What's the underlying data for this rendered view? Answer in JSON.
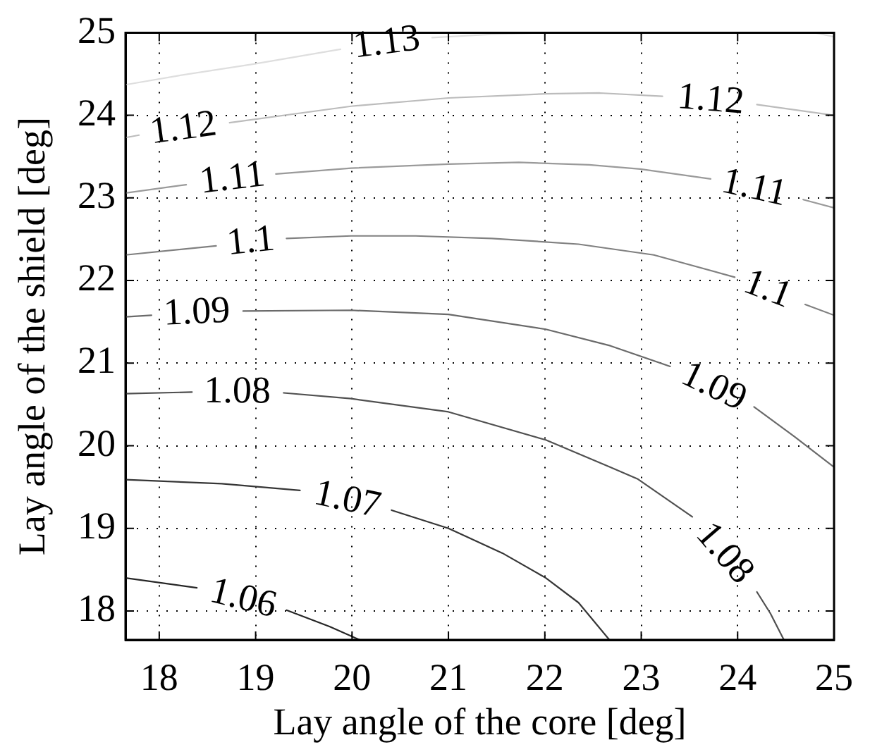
{
  "chart_data": {
    "type": "line",
    "xlabel": "Lay angle of the core [deg]",
    "ylabel": "Lay angle of the shield [deg]",
    "xlim": [
      17.65,
      25
    ],
    "ylim": [
      17.65,
      25
    ],
    "xticks": [
      18,
      19,
      20,
      21,
      22,
      23,
      24,
      25
    ],
    "yticks": [
      18,
      19,
      20,
      21,
      22,
      23,
      24,
      25
    ],
    "grid": true,
    "marker": "none",
    "line_style": "solid",
    "series": [
      {
        "name": "1.06",
        "color": "#262626",
        "x": [
          17.65,
          18.39,
          18.87,
          19.32,
          19.77,
          20.08
        ],
        "values": [
          18.4,
          18.28,
          null,
          18.01,
          17.81,
          17.65
        ]
      },
      {
        "name": "1.07",
        "color": "#363636",
        "x": [
          17.65,
          18.65,
          19.46,
          19.95,
          20.41,
          21.0,
          21.56,
          22.01,
          22.35,
          22.67
        ],
        "values": [
          19.59,
          19.54,
          19.46,
          null,
          19.22,
          19.0,
          18.7,
          18.4,
          18.1,
          17.65
        ]
      },
      {
        "name": "1.08",
        "color": "#505050",
        "x": [
          17.65,
          18.34,
          18.81,
          19.29,
          19.99,
          21.0,
          22.01,
          22.68,
          22.96,
          23.53,
          23.86,
          24.2,
          24.34,
          24.48
        ],
        "values": [
          20.63,
          20.65,
          null,
          20.64,
          20.57,
          20.41,
          20.07,
          19.74,
          19.6,
          19.14,
          null,
          18.23,
          17.97,
          17.65
        ]
      },
      {
        "name": "1.09",
        "color": "#6a6a6a",
        "x": [
          17.65,
          17.92,
          18.39,
          18.87,
          19.99,
          21.0,
          22.01,
          22.68,
          23.3,
          23.75,
          24.17,
          24.59,
          25
        ],
        "values": [
          21.56,
          21.58,
          null,
          21.63,
          21.64,
          21.59,
          21.41,
          21.21,
          20.96,
          null,
          20.47,
          20.11,
          19.74
        ]
      },
      {
        "name": "1.1",
        "color": "#808080",
        "x": [
          17.65,
          18.59,
          18.95,
          19.32,
          19.99,
          20.66,
          21.45,
          22.35,
          23.13,
          23.97,
          24.31,
          24.7,
          25
        ],
        "values": [
          22.31,
          22.42,
          null,
          22.51,
          22.54,
          22.54,
          22.51,
          22.44,
          22.31,
          22.04,
          null,
          21.71,
          21.58
        ]
      },
      {
        "name": "1.11",
        "color": "#9a9a9a",
        "x": [
          17.65,
          18.28,
          18.76,
          19.21,
          19.99,
          21.0,
          21.73,
          22.46,
          22.99,
          23.72,
          24.17,
          24.68,
          25
        ],
        "values": [
          23.06,
          23.16,
          null,
          23.29,
          23.36,
          23.41,
          23.43,
          23.4,
          23.35,
          23.23,
          null,
          22.98,
          22.88
        ]
      },
      {
        "name": "1.12",
        "color": "#bcbcbc",
        "x": [
          17.65,
          17.79,
          18.25,
          18.73,
          19.99,
          21.0,
          22.01,
          22.57,
          23.22,
          23.72,
          24.2,
          25
        ],
        "values": [
          23.73,
          23.76,
          null,
          23.91,
          24.11,
          24.21,
          24.26,
          24.27,
          24.23,
          null,
          24.13,
          24.0
        ]
      },
      {
        "name": "1.13",
        "color": "#dedede",
        "x": [
          17.65,
          18.2,
          18.98,
          19.88,
          20.36,
          20.83,
          21.45,
          22.0
        ],
        "values": [
          24.37,
          24.48,
          24.62,
          24.8,
          null,
          24.94,
          24.98,
          25.0
        ]
      },
      {
        "color": "#dedede",
        "x": [
          24.8,
          25
        ],
        "values": [
          25.0,
          24.95
        ]
      }
    ]
  }
}
